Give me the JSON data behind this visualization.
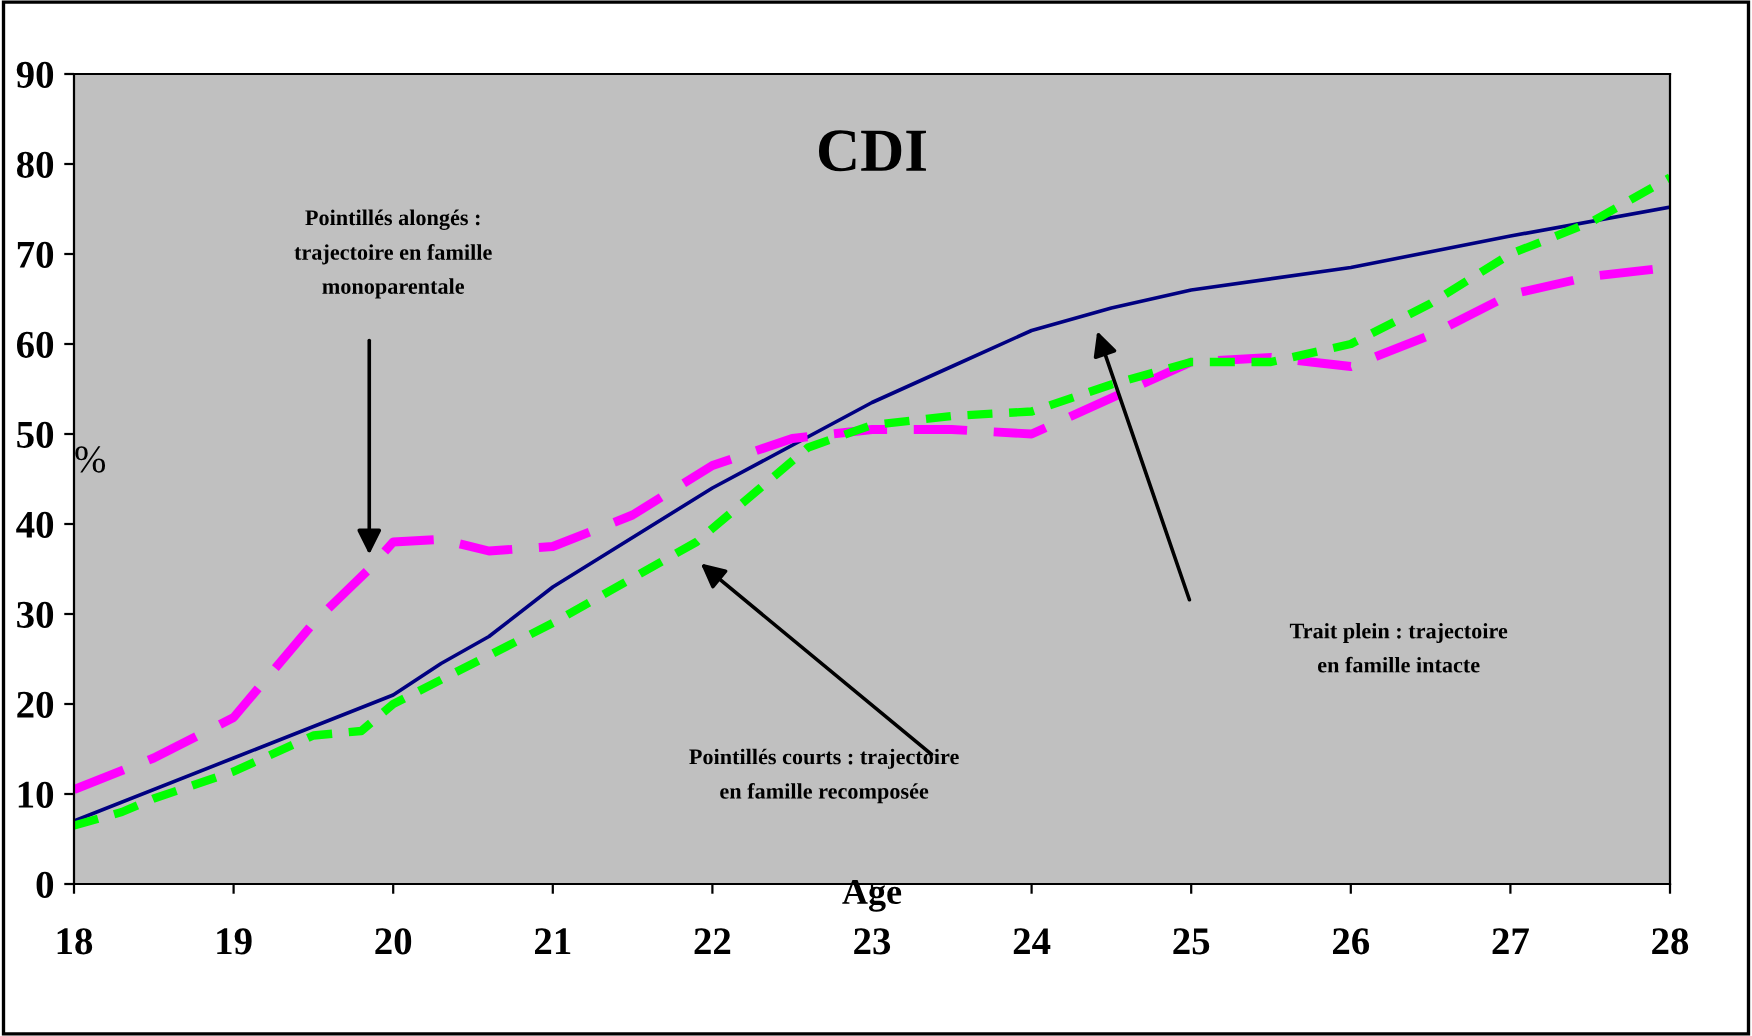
{
  "chart_data": {
    "type": "line",
    "title": "CDI",
    "xlabel": "Age",
    "ylabel": "%",
    "xlim": [
      18,
      28
    ],
    "ylim": [
      0,
      90
    ],
    "xticks": [
      18,
      19,
      20,
      21,
      22,
      23,
      24,
      25,
      26,
      27,
      28
    ],
    "yticks": [
      0,
      10,
      20,
      30,
      40,
      50,
      60,
      70,
      80,
      90
    ],
    "grid": false,
    "legend": false,
    "series": [
      {
        "color": "#000080",
        "line_style": "solid",
        "x": [
          18,
          19,
          20,
          20.3,
          20.6,
          21,
          22,
          23,
          23.5,
          24,
          24.5,
          25,
          26,
          27,
          28
        ],
        "values": [
          7,
          14,
          21,
          24.5,
          27.5,
          33,
          44,
          53.5,
          57.5,
          61.5,
          64,
          66,
          68.5,
          72,
          75.2
        ]
      },
      {
        "color": "#ff00ff",
        "line_style": "dashed",
        "x": [
          18,
          18.5,
          19,
          19.5,
          19.85,
          20,
          20.3,
          20.6,
          21,
          21.5,
          22,
          22.5,
          23,
          23.5,
          24,
          24.5,
          25,
          25.5,
          26,
          26.5,
          27,
          27.5,
          28
        ],
        "values": [
          10.5,
          14,
          18.5,
          29,
          35,
          38,
          38.3,
          37,
          37.5,
          41,
          46.5,
          49.5,
          50.5,
          50.5,
          50,
          54,
          58,
          58.5,
          57.5,
          61,
          65.5,
          67.5,
          68.5
        ]
      },
      {
        "color": "#00ff00",
        "line_style": "dotted",
        "x": [
          18,
          18.3,
          18.5,
          19,
          19.5,
          19.8,
          20,
          20.5,
          21,
          21.5,
          21.9,
          22.3,
          22.6,
          23,
          23.5,
          24,
          24.5,
          25,
          25.5,
          26,
          26.5,
          27,
          27.5,
          28
        ],
        "values": [
          6.5,
          8,
          9.5,
          12.5,
          16.5,
          17,
          20,
          24.5,
          29,
          34,
          38,
          44,
          48.5,
          51,
          52,
          52.5,
          55.5,
          58,
          58,
          60,
          64.5,
          70,
          73.5,
          78.5
        ]
      }
    ],
    "annotations": [
      "Pointillés alongés :\ntrajectoire en famille\nmonoparentale",
      "Pointillés courts : trajectoire\nen famille recomposée",
      "Trait plein : trajectoire\nen famille intacte"
    ]
  }
}
